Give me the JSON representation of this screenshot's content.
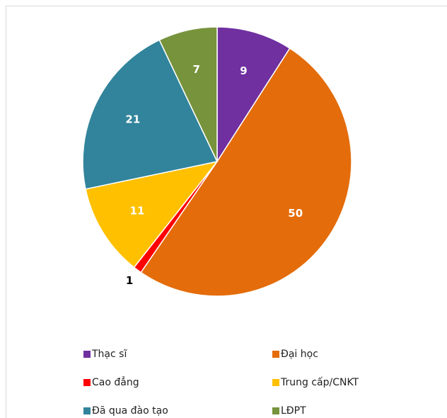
{
  "chart_data": {
    "type": "pie",
    "categories": [
      "Thạc sĩ",
      "Đại học",
      "Cao đẳng",
      "Trung cấp/CNKT",
      "Đã qua đào tạo",
      "LĐPT"
    ],
    "values": [
      9,
      50,
      1,
      11,
      21,
      7
    ],
    "colors": [
      "#7030a0",
      "#e46c0a",
      "#ff0000",
      "#ffc000",
      "#31849b",
      "#77933c"
    ],
    "legend": "bottom"
  }
}
